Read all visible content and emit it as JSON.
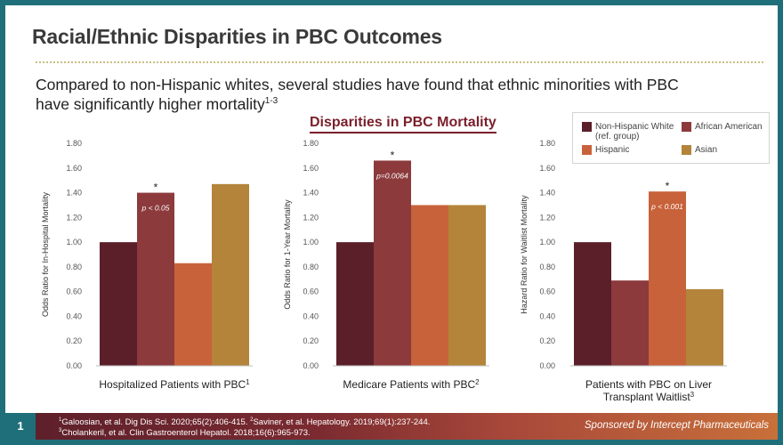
{
  "slide": {
    "title": "Racial/Ethnic Disparities in PBC Outcomes",
    "intro_line1": "Compared to non-Hispanic whites, several studies have found that ethnic minorities with PBC",
    "intro_line2": "have significantly higher mortality",
    "intro_sup": "1-3",
    "section_heading": "Disparities in PBC Mortality"
  },
  "legend": {
    "items": [
      {
        "label_lines": [
          "Non-Hispanic White",
          "(ref. group)"
        ],
        "color": "#5b1f2a"
      },
      {
        "label_lines": [
          "African American"
        ],
        "color": "#8c3a3c"
      },
      {
        "label_lines": [
          "Hispanic"
        ],
        "color": "#c8623a"
      },
      {
        "label_lines": [
          "Asian"
        ],
        "color": "#b3843a"
      }
    ]
  },
  "chart_data": [
    {
      "type": "bar",
      "categories": [
        "Non-Hispanic White (ref. group)",
        "African American",
        "Hispanic",
        "Asian"
      ],
      "values": [
        1.0,
        1.4,
        0.83,
        1.47
      ],
      "colors": [
        "#5b1f2a",
        "#8c3a3c",
        "#c8623a",
        "#b3843a"
      ],
      "ylabel": "Odds Ratio for In-Hospital Mortality",
      "ylim": [
        0,
        1.8
      ],
      "yticks": [
        "0.00",
        "0.20",
        "0.40",
        "0.60",
        "0.80",
        "1.00",
        "1.20",
        "1.40",
        "1.60",
        "1.80"
      ],
      "xlabel_lines": [
        "Hospitalized Patients with PBC"
      ],
      "xlabel_sup": "1",
      "annotation": {
        "index": 1,
        "star": "*",
        "text": "p < 0.05"
      }
    },
    {
      "type": "bar",
      "categories": [
        "Non-Hispanic White (ref. group)",
        "African American",
        "Hispanic",
        "Asian"
      ],
      "values": [
        1.0,
        1.66,
        1.3,
        1.3
      ],
      "colors": [
        "#5b1f2a",
        "#8c3a3c",
        "#c8623a",
        "#b3843a"
      ],
      "ylabel": "Odds Ratio for 1-Year Mortality",
      "ylim": [
        0,
        1.8
      ],
      "yticks": [
        "0.00",
        "0.20",
        "0.40",
        "0.60",
        "0.80",
        "1.00",
        "1.20",
        "1.40",
        "1.60",
        "1.80"
      ],
      "xlabel_lines": [
        "Medicare Patients with PBC"
      ],
      "xlabel_sup": "2",
      "annotation": {
        "index": 1,
        "star": "*",
        "text": "p=0.0064"
      }
    },
    {
      "type": "bar",
      "categories": [
        "Non-Hispanic White (ref. group)",
        "African American",
        "Hispanic",
        "Asian"
      ],
      "values": [
        1.0,
        0.69,
        1.41,
        0.62
      ],
      "colors": [
        "#5b1f2a",
        "#8c3a3c",
        "#c8623a",
        "#b3843a"
      ],
      "ylabel": "Hazard Ratio for Waitlist Mortality",
      "ylim": [
        0,
        1.8
      ],
      "yticks": [
        "0.00",
        "0.20",
        "0.40",
        "0.60",
        "0.80",
        "1.00",
        "1.20",
        "1.40",
        "1.60",
        "1.80"
      ],
      "xlabel_lines": [
        "Patients with PBC on Liver",
        "Transplant Waitlist"
      ],
      "xlabel_sup": "3",
      "annotation": {
        "index": 2,
        "star": "*",
        "text": "p < 0.001"
      }
    }
  ],
  "footer": {
    "slide_number": "1",
    "ref1_sup": "1",
    "ref1": "Galoosian,  et  al. Dig Dis Sci. 2020;65(2):406-415. ",
    "ref2_sup": "2",
    "ref2": "Saviner, et al. Hepatology. 2019;69(1):237-244.",
    "ref3_sup": "3",
    "ref3": "Cholankeril, et al. Clin Gastroenterol Hepatol. 2018;16(6):965-973.",
    "sponsor": "Sponsored by Intercept Pharmaceuticals"
  }
}
